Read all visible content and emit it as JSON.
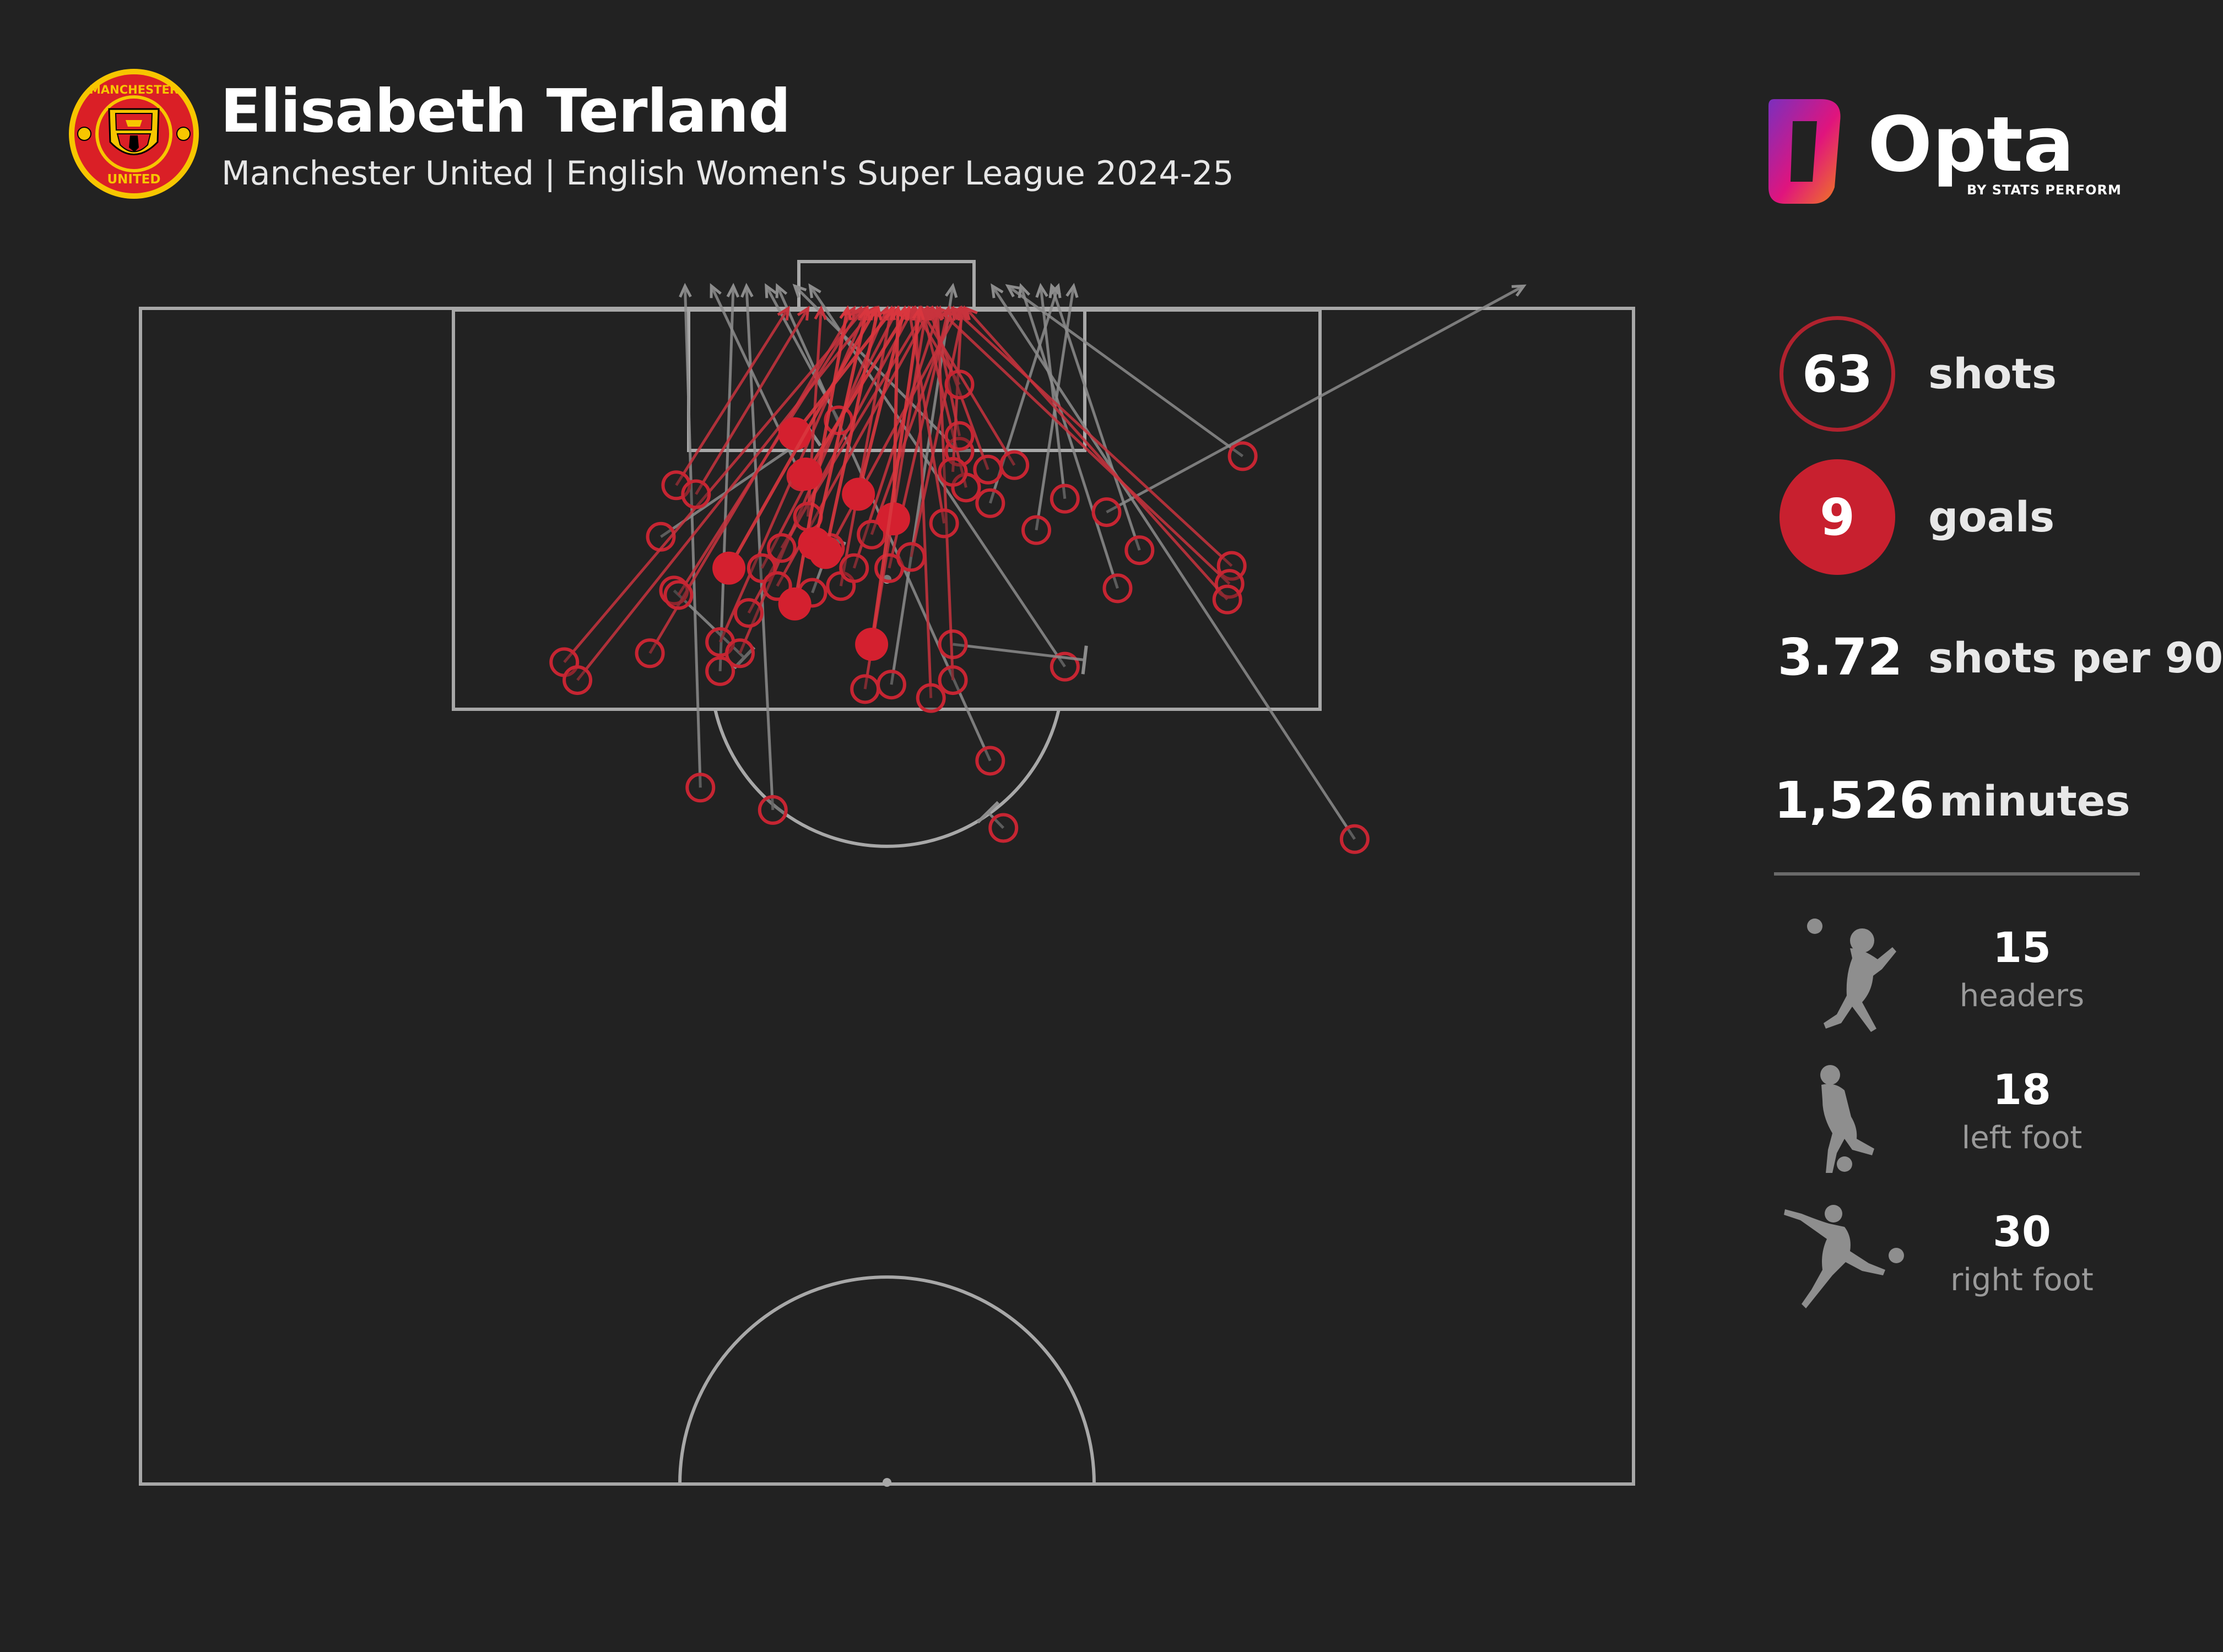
{
  "header": {
    "player_name": "Elisabeth Terland",
    "subtitle": "Manchester United | English Women's Super League 2024-25"
  },
  "crest": {
    "top_text": "MANCHESTER",
    "bottom_text": "UNITED",
    "colors": {
      "red": "#da1f26",
      "gold": "#f7c600",
      "black": "#000000"
    }
  },
  "brand": {
    "name": "Opta",
    "tagline": "BY STATS PERFORM",
    "gradient": [
      "#7b2fbe",
      "#e0147d",
      "#f07d1e"
    ]
  },
  "stats": {
    "shots": {
      "value": "63",
      "label": "shots"
    },
    "goals": {
      "value": "9",
      "label": "goals"
    },
    "shots_per_90": {
      "value": "3.72",
      "label": "shots per 90"
    },
    "minutes": {
      "value": "1,526",
      "label": "minutes"
    }
  },
  "body_parts": [
    {
      "icon": "header-silhouette-icon",
      "value": "15",
      "label": "headers"
    },
    {
      "icon": "left-foot-silhouette-icon",
      "value": "18",
      "label": "left foot"
    },
    {
      "icon": "right-foot-silhouette-icon",
      "value": "30",
      "label": "right foot"
    }
  ],
  "colors": {
    "background": "#222222",
    "pitch_lines": "#a8a8a8",
    "goal": "#d4202f",
    "goal_line": "#d9363e",
    "shot_outline": "#c62532",
    "miss_line": "#8c8c8c"
  },
  "chart_data": {
    "type": "scatter",
    "description": "Shot map on attacking half of pitch. Coordinates: x = distance from left touchline (m, pitch width 68), y = distance from goal line (m, half length 52.5). Outcomes: goal, on_target (saved), off_target (wide/over), blocked.",
    "pitch": {
      "width_m": 68,
      "half_length_m": 52.5
    },
    "shots": [
      {
        "x": 29.8,
        "y": 13.2,
        "outcome": "goal",
        "end_x": 32.2,
        "end_y": 0
      },
      {
        "x": 30.7,
        "y": 10.5,
        "outcome": "goal",
        "end_x": 33.1,
        "end_y": 0
      },
      {
        "x": 31.2,
        "y": 10.9,
        "outcome": "goal",
        "end_x": 33.6,
        "end_y": 0
      },
      {
        "x": 29.8,
        "y": 5.6,
        "outcome": "goal",
        "end_x": 34.3,
        "end_y": 0
      },
      {
        "x": 32.7,
        "y": 8.3,
        "outcome": "goal",
        "end_x": 34.8,
        "end_y": 0
      },
      {
        "x": 26.8,
        "y": 11.6,
        "outcome": "goal",
        "end_x": 33.5,
        "end_y": 0
      },
      {
        "x": 30.3,
        "y": 7.4,
        "outcome": "goal",
        "end_x": 35.0,
        "end_y": 0
      },
      {
        "x": 34.3,
        "y": 9.4,
        "outcome": "goal",
        "end_x": 34.5,
        "end_y": 0
      },
      {
        "x": 33.3,
        "y": 15.0,
        "outcome": "goal",
        "end_x": 35.5,
        "end_y": 0
      },
      {
        "x": 19.3,
        "y": 15.8,
        "outcome": "on_target",
        "end_x": 33.0,
        "end_y": 0
      },
      {
        "x": 19.9,
        "y": 16.6,
        "outcome": "on_target",
        "end_x": 33.4,
        "end_y": 0
      },
      {
        "x": 23.2,
        "y": 15.4,
        "outcome": "on_target",
        "end_x": 32.5,
        "end_y": 0
      },
      {
        "x": 24.5,
        "y": 12.8,
        "outcome": "on_target",
        "end_x": 32.8,
        "end_y": 0
      },
      {
        "x": 24.4,
        "y": 7.9,
        "outcome": "on_target",
        "end_x": 29.5,
        "end_y": 0
      },
      {
        "x": 25.3,
        "y": 8.3,
        "outcome": "on_target",
        "end_x": 30.4,
        "end_y": 0
      },
      {
        "x": 26.4,
        "y": 14.9,
        "outcome": "on_target",
        "end_x": 33.1,
        "end_y": 0
      },
      {
        "x": 27.3,
        "y": 15.4,
        "outcome": "on_target",
        "end_x": 34.0,
        "end_y": 0
      },
      {
        "x": 27.7,
        "y": 13.6,
        "outcome": "on_target",
        "end_x": 35.2,
        "end_y": 0
      },
      {
        "x": 28.3,
        "y": 11.6,
        "outcome": "on_target",
        "end_x": 34.5,
        "end_y": 0
      },
      {
        "x": 29.2,
        "y": 10.7,
        "outcome": "on_target",
        "end_x": 35.8,
        "end_y": 0
      },
      {
        "x": 29.0,
        "y": 12.4,
        "outcome": "on_target",
        "end_x": 36.0,
        "end_y": 0
      },
      {
        "x": 30.4,
        "y": 9.3,
        "outcome": "on_target",
        "end_x": 31.0,
        "end_y": 0
      },
      {
        "x": 31.4,
        "y": 10.7,
        "outcome": "on_target",
        "end_x": 37.3,
        "end_y": 0
      },
      {
        "x": 31.9,
        "y": 12.4,
        "outcome": "on_target",
        "end_x": 34.2,
        "end_y": 0
      },
      {
        "x": 32.5,
        "y": 11.6,
        "outcome": "on_target",
        "end_x": 36.4,
        "end_y": 0
      },
      {
        "x": 33.3,
        "y": 10.1,
        "outcome": "on_target",
        "end_x": 37.0,
        "end_y": 0
      },
      {
        "x": 34.1,
        "y": 11.6,
        "outcome": "on_target",
        "end_x": 36.8,
        "end_y": 0
      },
      {
        "x": 33.0,
        "y": 17.0,
        "outcome": "on_target",
        "end_x": 35.8,
        "end_y": 0
      },
      {
        "x": 36.0,
        "y": 17.4,
        "outcome": "on_target",
        "end_x": 35.3,
        "end_y": 0
      },
      {
        "x": 37.0,
        "y": 16.6,
        "outcome": "on_target",
        "end_x": 36.3,
        "end_y": 0
      },
      {
        "x": 35.1,
        "y": 11.1,
        "outcome": "on_target",
        "end_x": 37.5,
        "end_y": 0
      },
      {
        "x": 37.6,
        "y": 8.0,
        "outcome": "on_target",
        "end_x": 35.6,
        "end_y": 0
      },
      {
        "x": 38.6,
        "y": 7.2,
        "outcome": "on_target",
        "end_x": 35.9,
        "end_y": 0
      },
      {
        "x": 37.3,
        "y": 5.7,
        "outcome": "on_target",
        "end_x": 36.1,
        "end_y": 0
      },
      {
        "x": 37.0,
        "y": 7.3,
        "outcome": "on_target",
        "end_x": 37.4,
        "end_y": 0
      },
      {
        "x": 37.3,
        "y": 3.4,
        "outcome": "on_target",
        "end_x": 35.2,
        "end_y": 0
      },
      {
        "x": 36.6,
        "y": 9.6,
        "outcome": "on_target",
        "end_x": 35.0,
        "end_y": 0
      },
      {
        "x": 39.8,
        "y": 7.0,
        "outcome": "on_target",
        "end_x": 35.5,
        "end_y": 0
      },
      {
        "x": 49.7,
        "y": 11.5,
        "outcome": "on_target",
        "end_x": 37.0,
        "end_y": 0
      },
      {
        "x": 49.6,
        "y": 12.3,
        "outcome": "on_target",
        "end_x": 36.3,
        "end_y": 0
      },
      {
        "x": 49.5,
        "y": 13.0,
        "outcome": "on_target",
        "end_x": 37.6,
        "end_y": 0
      },
      {
        "x": 28.8,
        "y": 22.4,
        "outcome": "off_target",
        "end_x": 27.6,
        "end_y": -1
      },
      {
        "x": 34.2,
        "y": 16.8,
        "outcome": "off_target",
        "end_x": 37.0,
        "end_y": -1
      },
      {
        "x": 38.7,
        "y": 20.2,
        "outcome": "off_target",
        "end_x": 29.0,
        "end_y": -1
      },
      {
        "x": 26.4,
        "y": 16.2,
        "outcome": "off_target",
        "end_x": 27.0,
        "end_y": -1
      },
      {
        "x": 31.8,
        "y": 5.0,
        "outcome": "off_target",
        "end_x": 28.5,
        "end_y": -1
      },
      {
        "x": 37.3,
        "y": 6.4,
        "outcome": "off_target",
        "end_x": 29.8,
        "end_y": -1
      },
      {
        "x": 42.1,
        "y": 16.0,
        "outcome": "off_target",
        "end_x": 30.5,
        "end_y": -1
      },
      {
        "x": 38.7,
        "y": 8.7,
        "outcome": "off_target",
        "end_x": 41.8,
        "end_y": -1
      },
      {
        "x": 42.1,
        "y": 8.5,
        "outcome": "off_target",
        "end_x": 41.0,
        "end_y": -1
      },
      {
        "x": 40.8,
        "y": 9.9,
        "outcome": "off_target",
        "end_x": 42.5,
        "end_y": -1
      },
      {
        "x": 44.5,
        "y": 12.5,
        "outcome": "off_target",
        "end_x": 40.1,
        "end_y": -1
      },
      {
        "x": 45.5,
        "y": 10.8,
        "outcome": "off_target",
        "end_x": 41.5,
        "end_y": -1
      },
      {
        "x": 55.3,
        "y": 23.7,
        "outcome": "off_target",
        "end_x": 38.8,
        "end_y": -1
      },
      {
        "x": 50.2,
        "y": 6.6,
        "outcome": "off_target",
        "end_x": 39.5,
        "end_y": -1
      },
      {
        "x": 44.0,
        "y": 9.1,
        "outcome": "off_target",
        "end_x": 63.0,
        "end_y": -1
      },
      {
        "x": 25.5,
        "y": 21.4,
        "outcome": "off_target",
        "end_x": 24.8,
        "end_y": -1
      },
      {
        "x": 30.1,
        "y": 7.5,
        "outcome": "off_target",
        "end_x": 26.0,
        "end_y": -1
      },
      {
        "x": 23.7,
        "y": 10.2,
        "outcome": "blocked",
        "end_x": 30.6,
        "end_y": 5.6
      },
      {
        "x": 24.3,
        "y": 12.6,
        "outcome": "blocked",
        "end_x": 27.5,
        "end_y": 15.6
      },
      {
        "x": 30.6,
        "y": 12.7,
        "outcome": "blocked",
        "end_x": 31.5,
        "end_y": 10.3
      },
      {
        "x": 37.0,
        "y": 15.0,
        "outcome": "blocked",
        "end_x": 43.0,
        "end_y": 15.7
      },
      {
        "x": 39.3,
        "y": 23.2,
        "outcome": "blocked",
        "end_x": 38.6,
        "end_y": 22.5
      }
    ]
  }
}
